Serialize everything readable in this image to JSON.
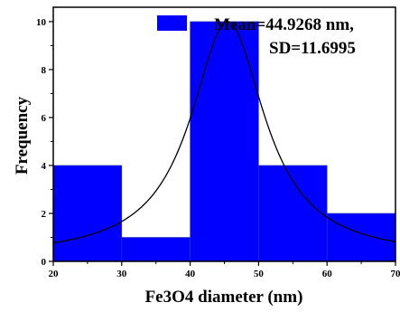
{
  "chart_data": {
    "type": "bar",
    "title": "",
    "xlabel": "Fe3O4 diameter (nm)",
    "ylabel": "Frequency",
    "xlim": [
      20,
      70
    ],
    "ylim": [
      0,
      10.6
    ],
    "x_ticks": [
      20,
      30,
      40,
      50,
      60,
      70
    ],
    "y_ticks": [
      0,
      2,
      4,
      6,
      8,
      10
    ],
    "grid": false,
    "legend_placement": "top-right",
    "series": [
      {
        "kind": "histogram",
        "bins": [
          {
            "from": 20,
            "to": 30,
            "value": 4
          },
          {
            "from": 30,
            "to": 40,
            "value": 1
          },
          {
            "from": 40,
            "to": 50,
            "value": 10
          },
          {
            "from": 50,
            "to": 60,
            "value": 4
          },
          {
            "from": 60,
            "to": 70,
            "value": 2
          }
        ],
        "color": "#0000ff"
      },
      {
        "kind": "fit-curve",
        "shape": "lorentzian",
        "center": 45.5,
        "peak": 10,
        "half_width": 6.6,
        "baseline": 0.15,
        "color": "#000000"
      }
    ],
    "legend": {
      "swatch_color": "#0000ff",
      "line1": "Mean=44.9268 nm,",
      "line2": "SD=11.6995"
    }
  }
}
